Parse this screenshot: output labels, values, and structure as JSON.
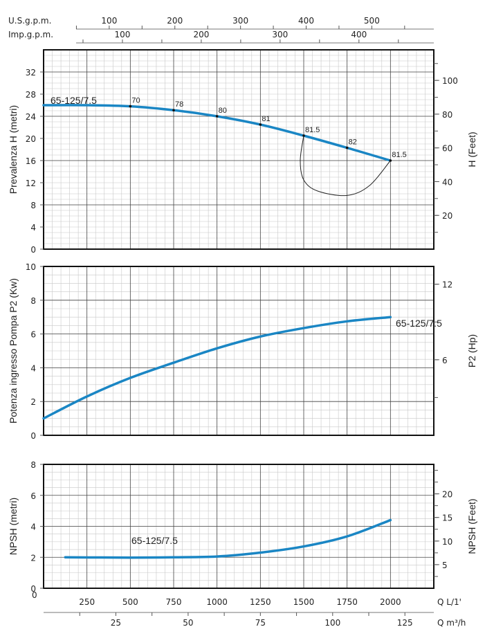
{
  "chart_data": {
    "type": "line",
    "model_label": "65-125/7.5",
    "x_axis": {
      "label": "Q L/1'",
      "range": [
        0,
        2250
      ],
      "ticks": [
        0,
        250,
        500,
        750,
        1000,
        1250,
        1500,
        1750,
        2000
      ]
    },
    "secondary_x_axes": [
      {
        "label": "U.S.g.p.m.",
        "ticks": [
          100,
          200,
          300,
          400,
          500
        ]
      },
      {
        "label": "Imp.g.p.m.",
        "ticks": [
          100,
          200,
          300,
          400
        ]
      },
      {
        "label": "Q m³/h",
        "ticks": [
          25,
          50,
          75,
          100,
          125
        ]
      }
    ],
    "panels": [
      {
        "name": "head",
        "ylabel": "Prevalenza H (metri)",
        "ylim": [
          0,
          36
        ],
        "yticks": [
          0,
          4,
          8,
          12,
          16,
          20,
          24,
          28,
          32
        ],
        "right_label": "H (Feet)",
        "right_ticks": [
          20,
          40,
          60,
          80,
          100
        ],
        "series": {
          "name": "65-125/7.5",
          "x": [
            0,
            250,
            500,
            750,
            1000,
            1250,
            1500,
            1750,
            2000
          ],
          "y": [
            26,
            26,
            25.8,
            25.1,
            24,
            22.5,
            20.5,
            18.3,
            16
          ]
        },
        "efficiency_points": [
          {
            "x": 500,
            "y": 25.8,
            "label": "70"
          },
          {
            "x": 750,
            "y": 25.1,
            "label": "78"
          },
          {
            "x": 1000,
            "y": 24,
            "label": "80"
          },
          {
            "x": 1250,
            "y": 22.5,
            "label": "81"
          },
          {
            "x": 1500,
            "y": 20.5,
            "label": "81.5"
          },
          {
            "x": 1750,
            "y": 18.3,
            "label": "82"
          },
          {
            "x": 2000,
            "y": 16,
            "label": "81.5"
          }
        ],
        "operating_range_curve": {
          "x": [
            1500,
            1480,
            1500,
            1580,
            1750,
            1880,
            2000
          ],
          "y": [
            20.5,
            16,
            12.5,
            10.5,
            9.7,
            11.5,
            16
          ]
        }
      },
      {
        "name": "power",
        "ylabel": "Potenza ingresso Pompa P2 (Kw)",
        "ylim": [
          0,
          10
        ],
        "yticks": [
          0,
          2,
          4,
          6,
          8,
          10
        ],
        "right_label": "P2 (Hp)",
        "right_ticks": [
          6,
          12
        ],
        "series": {
          "name": "65-125/7.5",
          "x": [
            0,
            250,
            500,
            750,
            1000,
            1250,
            1500,
            1750,
            2000
          ],
          "y": [
            1.0,
            2.3,
            3.4,
            4.3,
            5.15,
            5.85,
            6.35,
            6.75,
            7.0
          ]
        }
      },
      {
        "name": "npsh",
        "ylabel": "NPSH (metri)",
        "ylim": [
          0,
          8
        ],
        "yticks": [
          0,
          2,
          4,
          6,
          8
        ],
        "right_label": "NPSH (Feet)",
        "right_ticks": [
          5,
          10,
          15,
          20
        ],
        "series": {
          "name": "65-125/7.5",
          "x": [
            125,
            500,
            750,
            1000,
            1250,
            1500,
            1750,
            2000
          ],
          "y": [
            2.0,
            1.98,
            2.0,
            2.05,
            2.3,
            2.7,
            3.35,
            4.4
          ]
        }
      }
    ],
    "curve_color": "#1a86c4"
  }
}
